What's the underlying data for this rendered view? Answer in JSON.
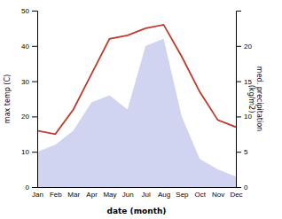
{
  "chart_data": {
    "type": "line",
    "categories": [
      "Jan",
      "Feb",
      "Mar",
      "Apr",
      "May",
      "Jun",
      "Jul",
      "Aug",
      "Sep",
      "Oct",
      "Nov",
      "Dec"
    ],
    "xlabel": "date (month)",
    "ylabel": "max temp (C)",
    "y2label": "med. precipitation\n(kg/m2)",
    "ylim": [
      0,
      50
    ],
    "yticks": [
      0,
      10,
      20,
      30,
      40,
      50
    ],
    "y2lim": [
      0,
      25
    ],
    "y2ticks": [
      0,
      5,
      10,
      15,
      20
    ],
    "grid": false,
    "series": [
      {
        "type": "area",
        "axis": "y2",
        "color": "#b0b8e8",
        "values": [
          5,
          6,
          8,
          12,
          13,
          11,
          20,
          21,
          10,
          4,
          2.5,
          1.5
        ]
      },
      {
        "type": "line",
        "color": "#c0392b",
        "values": [
          16,
          15,
          22,
          32,
          42,
          43,
          45,
          46,
          37,
          27,
          19,
          17
        ]
      }
    ]
  }
}
